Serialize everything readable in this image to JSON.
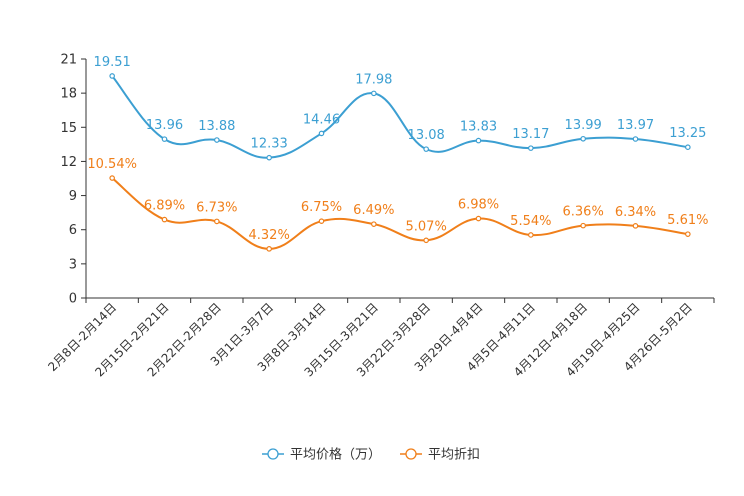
{
  "chart_data": {
    "type": "line",
    "categories": [
      "2月8日-2月14日",
      "2月15日-2月21日",
      "2月22日-2月28日",
      "3月1日-3月7日",
      "3月8日-3月14日",
      "3月15日-3月21日",
      "3月22日-3月28日",
      "3月29日-4月4日",
      "4月5日-4月11日",
      "4月12日-4月18日",
      "4月19日-4月25日",
      "4月26日-5月2日"
    ],
    "ylim": [
      0,
      21
    ],
    "yticks": [
      0,
      3,
      6,
      9,
      12,
      15,
      18,
      21
    ],
    "series": [
      {
        "name": "平均价格（万）",
        "color": "#3c9fd2",
        "values": [
          19.51,
          13.96,
          13.88,
          12.33,
          14.46,
          17.98,
          13.08,
          13.83,
          13.17,
          13.99,
          13.97,
          13.25
        ],
        "labels": [
          "19.51",
          "13.96",
          "13.88",
          "12.33",
          "14.46",
          "17.98",
          "13.08",
          "13.83",
          "13.17",
          "13.99",
          "13.97",
          "13.25"
        ]
      },
      {
        "name": "平均折扣",
        "color": "#f07f1a",
        "values": [
          10.54,
          6.89,
          6.73,
          4.32,
          6.75,
          6.49,
          5.07,
          6.98,
          5.54,
          6.36,
          6.34,
          5.61
        ],
        "labels": [
          "10.54%",
          "6.89%",
          "6.73%",
          "4.32%",
          "6.75%",
          "6.49%",
          "5.07%",
          "6.98%",
          "5.54%",
          "6.36%",
          "6.34%",
          "5.61%"
        ]
      }
    ],
    "title": "",
    "xlabel": "",
    "ylabel": "",
    "legend_position": "bottom-center",
    "grid": false
  }
}
